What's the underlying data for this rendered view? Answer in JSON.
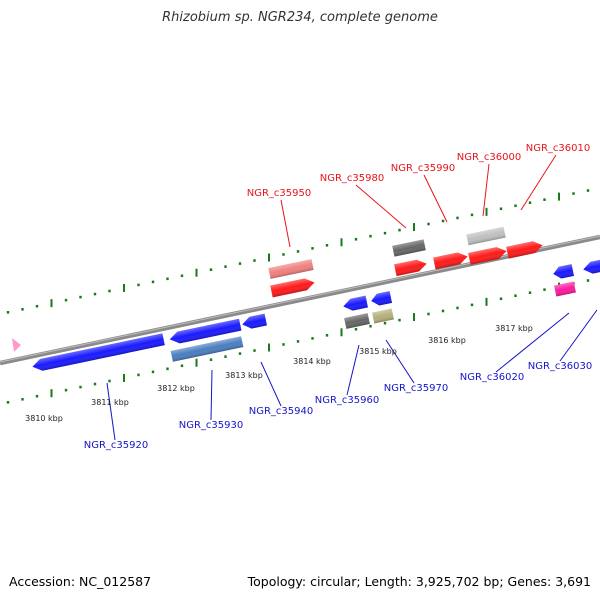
{
  "title": "Rhizobium sp. NGR234, complete genome",
  "footer": {
    "accession": "Accession: NC_012587",
    "summary": "Topology: circular; Length: 3,925,702 bp; Genes: 3,691"
  },
  "colors": {
    "forward_label": "#e8141b",
    "reverse_label": "#1515c8",
    "tick": "#1a7a1a",
    "backbone": "#8a8a8a"
  },
  "ruler": {
    "unit": "kbp",
    "labels": [
      "3810 kbp",
      "3811 kbp",
      "3812 kbp",
      "3813 kbp",
      "3814 kbp",
      "3815 kbp",
      "3816 kbp",
      "3817 kbp"
    ]
  },
  "genes": [
    {
      "label": "NGR_c35950",
      "strand": "forward",
      "color": "#ff1a1a"
    },
    {
      "label": "NGR_c35980",
      "strand": "forward",
      "color": "#ff1a1a"
    },
    {
      "label": "NGR_c35990",
      "strand": "forward",
      "color": "#ff1a1a"
    },
    {
      "label": "NGR_c36000",
      "strand": "forward",
      "color": "#ff1a1a"
    },
    {
      "label": "NGR_c36010",
      "strand": "forward",
      "color": "#ff1a1a"
    },
    {
      "label": "NGR_c35920",
      "strand": "reverse",
      "color": "#1a1aff"
    },
    {
      "label": "NGR_c35930",
      "strand": "reverse",
      "color": "#1a1aff"
    },
    {
      "label": "NGR_c35940",
      "strand": "reverse",
      "color": "#1a1aff"
    },
    {
      "label": "NGR_c35960",
      "strand": "reverse",
      "color": "#1a1aff"
    },
    {
      "label": "NGR_c35970",
      "strand": "reverse",
      "color": "#1a1aff"
    },
    {
      "label": "NGR_c36020",
      "strand": "reverse",
      "color": "#1a1aff"
    },
    {
      "label": "NGR_c36030",
      "strand": "reverse",
      "color": "#1a1aff"
    }
  ],
  "other_features": [
    {
      "name": "pseudogene-forward",
      "color": "#f08080"
    },
    {
      "name": "feature-grey-forward",
      "color": "#666666"
    },
    {
      "name": "feature-lightgrey-forward",
      "color": "#c0c0c0"
    },
    {
      "name": "feature-grey-reverse",
      "color": "#666666"
    },
    {
      "name": "feature-olive-reverse",
      "color": "#b4b07a"
    },
    {
      "name": "feature-steelblue-reverse",
      "color": "#4a7ec0"
    },
    {
      "name": "feature-pink-reverse",
      "color": "#ff1aa0"
    },
    {
      "name": "feature-marker",
      "color": "#ff99cc"
    }
  ]
}
